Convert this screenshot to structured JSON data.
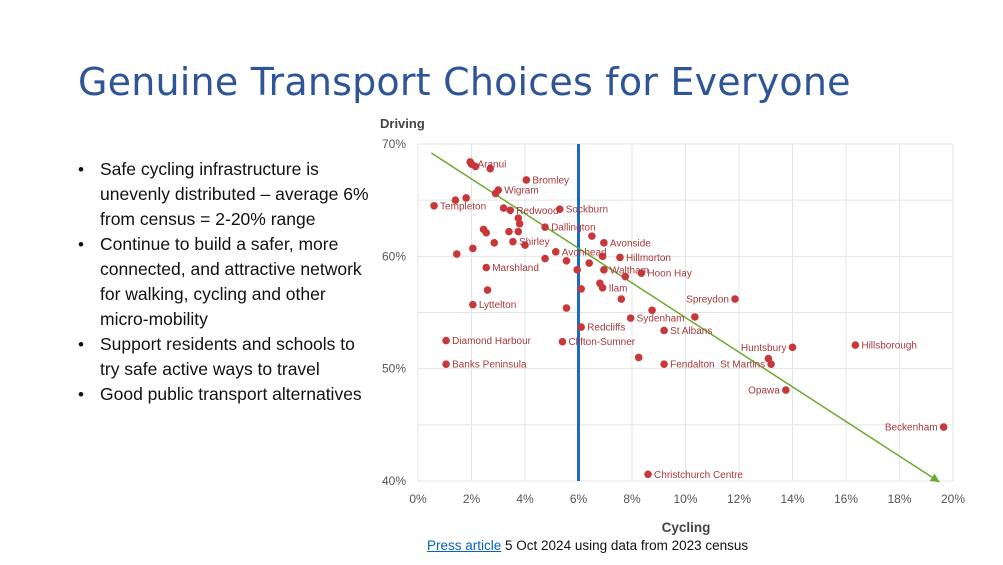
{
  "slide": {
    "title": "Genuine Transport Choices for Everyone",
    "bullets": [
      "Safe cycling infrastructure is unevenly distributed – average 6% from census = 2-20% range",
      "Continue to build a safer, more connected, and attractive network for walking, cycling and other micro-mobility",
      "Support residents and schools to try safe active ways to travel",
      "Good public transport alternatives"
    ],
    "caption": {
      "link_text": "Press article",
      "rest": " 5 Oct 2024 using data from 2023 census"
    }
  },
  "colors": {
    "title": "#2f5597",
    "point": "#c8383b",
    "trend": "#6aaa2a",
    "average_line": "#1a6bc2",
    "grid": "#e4e4e4",
    "label": "#a8393b"
  },
  "chart_data": {
    "type": "scatter",
    "title": "",
    "xlabel": "Cycling",
    "ylabel": "Driving",
    "xlim": [
      0,
      20
    ],
    "ylim": [
      40,
      70
    ],
    "xticks": [
      0,
      2,
      4,
      6,
      8,
      10,
      12,
      14,
      16,
      18,
      20
    ],
    "yticks": [
      40,
      50,
      60,
      70
    ],
    "x_tick_labels": [
      "0%",
      "2%",
      "4%",
      "6%",
      "8%",
      "10%",
      "12%",
      "14%",
      "16%",
      "18%",
      "20%"
    ],
    "y_tick_labels": [
      "40%",
      "50%",
      "60%",
      "70%"
    ],
    "grid": true,
    "average_line_x": 6.0,
    "trendline": {
      "x1": 0.5,
      "y1": 69.2,
      "x2": 19.5,
      "y2": 39.9
    },
    "points": [
      {
        "x": 2.0,
        "y": 68.2,
        "label": "Aranui"
      },
      {
        "x": 1.95,
        "y": 68.4,
        "label": ""
      },
      {
        "x": 2.15,
        "y": 68.0,
        "label": ""
      },
      {
        "x": 2.7,
        "y": 67.8,
        "label": ""
      },
      {
        "x": 4.05,
        "y": 66.8,
        "label": "Bromley"
      },
      {
        "x": 3.0,
        "y": 65.9,
        "label": "Wigram"
      },
      {
        "x": 2.9,
        "y": 65.6,
        "label": ""
      },
      {
        "x": 1.8,
        "y": 65.2,
        "label": ""
      },
      {
        "x": 1.4,
        "y": 65.0,
        "label": ""
      },
      {
        "x": 0.6,
        "y": 64.5,
        "label": "Templeton"
      },
      {
        "x": 3.2,
        "y": 64.3,
        "label": ""
      },
      {
        "x": 3.45,
        "y": 64.1,
        "label": "Redwood"
      },
      {
        "x": 5.3,
        "y": 64.2,
        "label": "Sockburn"
      },
      {
        "x": 3.75,
        "y": 63.4,
        "label": ""
      },
      {
        "x": 3.8,
        "y": 62.9,
        "label": ""
      },
      {
        "x": 4.75,
        "y": 62.6,
        "label": "Dallington"
      },
      {
        "x": 3.4,
        "y": 62.2,
        "label": ""
      },
      {
        "x": 2.55,
        "y": 62.1,
        "label": ""
      },
      {
        "x": 2.45,
        "y": 62.4,
        "label": ""
      },
      {
        "x": 3.75,
        "y": 62.2,
        "label": ""
      },
      {
        "x": 6.5,
        "y": 61.8,
        "label": ""
      },
      {
        "x": 3.55,
        "y": 61.3,
        "label": "Shirley"
      },
      {
        "x": 4.0,
        "y": 61.0,
        "label": ""
      },
      {
        "x": 2.85,
        "y": 61.2,
        "label": ""
      },
      {
        "x": 2.05,
        "y": 60.7,
        "label": ""
      },
      {
        "x": 6.95,
        "y": 61.2,
        "label": "Avonside"
      },
      {
        "x": 5.15,
        "y": 60.4,
        "label": "Avonhead"
      },
      {
        "x": 1.45,
        "y": 60.2,
        "label": ""
      },
      {
        "x": 6.9,
        "y": 60.0,
        "label": ""
      },
      {
        "x": 7.55,
        "y": 59.9,
        "label": "Hillmorton"
      },
      {
        "x": 4.75,
        "y": 59.8,
        "label": ""
      },
      {
        "x": 5.55,
        "y": 59.6,
        "label": ""
      },
      {
        "x": 6.4,
        "y": 59.4,
        "label": ""
      },
      {
        "x": 2.55,
        "y": 59.0,
        "label": "Marshland"
      },
      {
        "x": 6.95,
        "y": 58.8,
        "label": "Waltham"
      },
      {
        "x": 8.35,
        "y": 58.5,
        "label": "Hoon Hay"
      },
      {
        "x": 5.95,
        "y": 58.8,
        "label": ""
      },
      {
        "x": 7.75,
        "y": 58.2,
        "label": ""
      },
      {
        "x": 6.8,
        "y": 57.6,
        "label": ""
      },
      {
        "x": 6.9,
        "y": 57.2,
        "label": "Ilam"
      },
      {
        "x": 6.1,
        "y": 57.1,
        "label": ""
      },
      {
        "x": 2.6,
        "y": 57.0,
        "label": ""
      },
      {
        "x": 7.6,
        "y": 56.2,
        "label": ""
      },
      {
        "x": 11.85,
        "y": 56.2,
        "label": "Spreydon"
      },
      {
        "x": 2.05,
        "y": 55.7,
        "label": "Lyttelton"
      },
      {
        "x": 5.55,
        "y": 55.4,
        "label": ""
      },
      {
        "x": 8.75,
        "y": 55.2,
        "label": ""
      },
      {
        "x": 7.95,
        "y": 54.5,
        "label": "Sydenham"
      },
      {
        "x": 10.35,
        "y": 54.6,
        "label": ""
      },
      {
        "x": 6.1,
        "y": 53.7,
        "label": "Redcliffs"
      },
      {
        "x": 9.2,
        "y": 53.4,
        "label": "St Albans"
      },
      {
        "x": 1.05,
        "y": 52.5,
        "label": "Diamond Harbour"
      },
      {
        "x": 5.4,
        "y": 52.4,
        "label": "Clifton-Sumner"
      },
      {
        "x": 16.35,
        "y": 52.1,
        "label": "Hillsborough"
      },
      {
        "x": 14.0,
        "y": 51.9,
        "label": "Huntsbury"
      },
      {
        "x": 13.1,
        "y": 50.9,
        "label": ""
      },
      {
        "x": 8.25,
        "y": 51.0,
        "label": ""
      },
      {
        "x": 13.2,
        "y": 50.4,
        "label": "St Martins"
      },
      {
        "x": 1.05,
        "y": 50.4,
        "label": "Banks Peninsula"
      },
      {
        "x": 9.2,
        "y": 50.4,
        "label": "Fendalton"
      },
      {
        "x": 13.75,
        "y": 48.1,
        "label": "Opawa"
      },
      {
        "x": 19.65,
        "y": 44.8,
        "label": "Beckenham"
      },
      {
        "x": 8.6,
        "y": 40.6,
        "label": "Christchurch Centre"
      }
    ]
  }
}
